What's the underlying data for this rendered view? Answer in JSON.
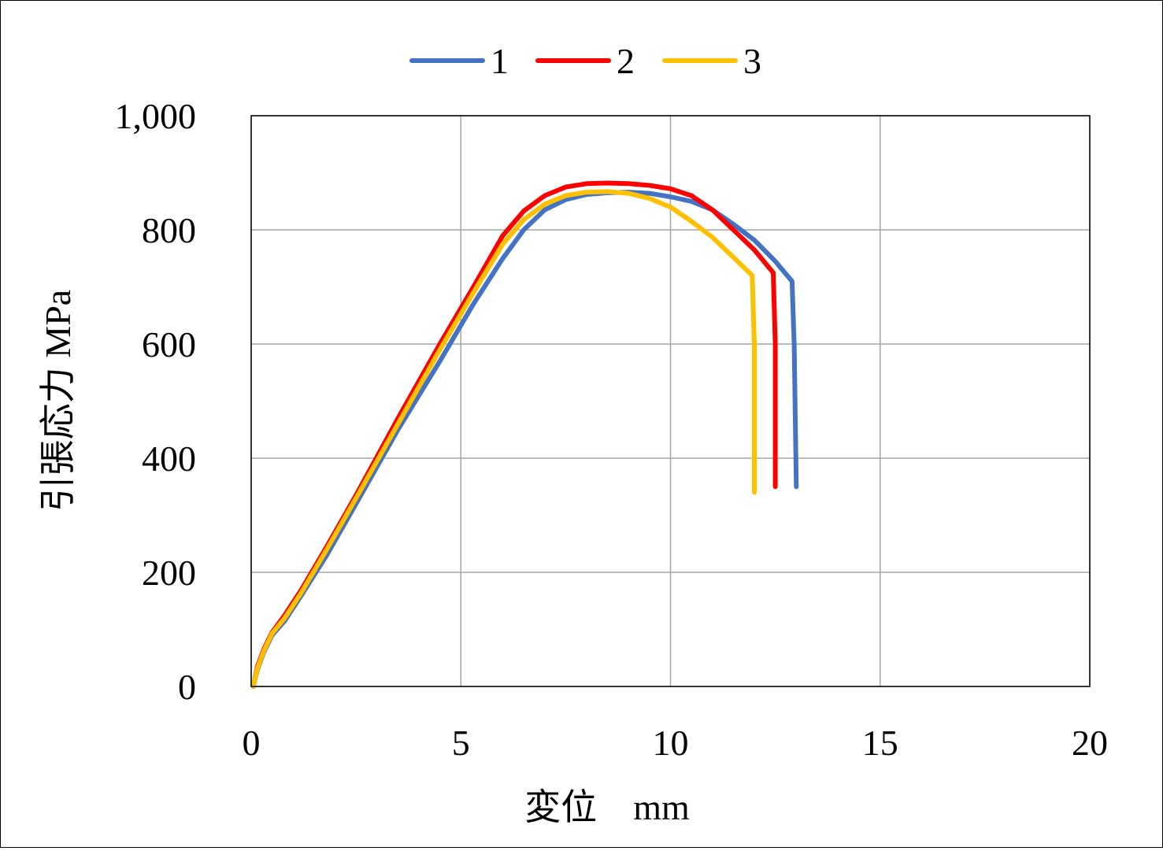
{
  "chart_data": {
    "type": "line",
    "xlabel": "変位　mm",
    "ylabel": "引張応力 MPa",
    "xlim": [
      0,
      20
    ],
    "ylim": [
      0,
      1000
    ],
    "x_ticks": [
      "0",
      "5",
      "10",
      "15",
      "20"
    ],
    "y_ticks": [
      "0",
      "200",
      "400",
      "600",
      "800",
      "1,000"
    ],
    "grid": true,
    "legend_position": "top",
    "series": [
      {
        "name": "1",
        "color": "#4472C4",
        "points": [
          [
            0.05,
            0
          ],
          [
            0.15,
            30
          ],
          [
            0.3,
            60
          ],
          [
            0.5,
            90
          ],
          [
            0.8,
            115
          ],
          [
            1.2,
            160
          ],
          [
            1.8,
            230
          ],
          [
            2.5,
            320
          ],
          [
            3.5,
            450
          ],
          [
            4.5,
            570
          ],
          [
            5.3,
            670
          ],
          [
            6.0,
            750
          ],
          [
            6.5,
            800
          ],
          [
            7.0,
            835
          ],
          [
            7.5,
            853
          ],
          [
            8.0,
            862
          ],
          [
            8.5,
            865
          ],
          [
            9.0,
            866
          ],
          [
            9.5,
            864
          ],
          [
            10.0,
            858
          ],
          [
            10.5,
            850
          ],
          [
            11.0,
            835
          ],
          [
            11.5,
            810
          ],
          [
            12.0,
            782
          ],
          [
            12.5,
            745
          ],
          [
            12.9,
            710
          ],
          [
            12.95,
            600
          ],
          [
            13.0,
            350
          ]
        ]
      },
      {
        "name": "2",
        "color": "#FF0000",
        "points": [
          [
            0.05,
            0
          ],
          [
            0.15,
            35
          ],
          [
            0.3,
            65
          ],
          [
            0.5,
            95
          ],
          [
            0.8,
            125
          ],
          [
            1.2,
            170
          ],
          [
            1.8,
            245
          ],
          [
            2.5,
            335
          ],
          [
            3.5,
            470
          ],
          [
            4.5,
            600
          ],
          [
            5.3,
            700
          ],
          [
            6.0,
            790
          ],
          [
            6.5,
            833
          ],
          [
            7.0,
            860
          ],
          [
            7.5,
            875
          ],
          [
            8.0,
            881
          ],
          [
            8.5,
            882
          ],
          [
            9.0,
            881
          ],
          [
            9.5,
            878
          ],
          [
            10.0,
            872
          ],
          [
            10.5,
            860
          ],
          [
            11.0,
            835
          ],
          [
            11.5,
            800
          ],
          [
            12.0,
            765
          ],
          [
            12.45,
            725
          ],
          [
            12.5,
            600
          ],
          [
            12.5,
            350
          ]
        ]
      },
      {
        "name": "3",
        "color": "#FFC000",
        "points": [
          [
            0.05,
            0
          ],
          [
            0.15,
            32
          ],
          [
            0.3,
            62
          ],
          [
            0.5,
            93
          ],
          [
            0.8,
            120
          ],
          [
            1.2,
            165
          ],
          [
            1.8,
            240
          ],
          [
            2.5,
            330
          ],
          [
            3.5,
            460
          ],
          [
            4.5,
            590
          ],
          [
            5.3,
            690
          ],
          [
            6.0,
            775
          ],
          [
            6.5,
            818
          ],
          [
            7.0,
            845
          ],
          [
            7.5,
            860
          ],
          [
            8.0,
            866
          ],
          [
            8.5,
            867
          ],
          [
            9.0,
            864
          ],
          [
            9.5,
            855
          ],
          [
            10.0,
            840
          ],
          [
            10.5,
            815
          ],
          [
            11.0,
            787
          ],
          [
            11.5,
            752
          ],
          [
            11.95,
            720
          ],
          [
            12.0,
            600
          ],
          [
            12.0,
            340
          ]
        ]
      }
    ]
  }
}
